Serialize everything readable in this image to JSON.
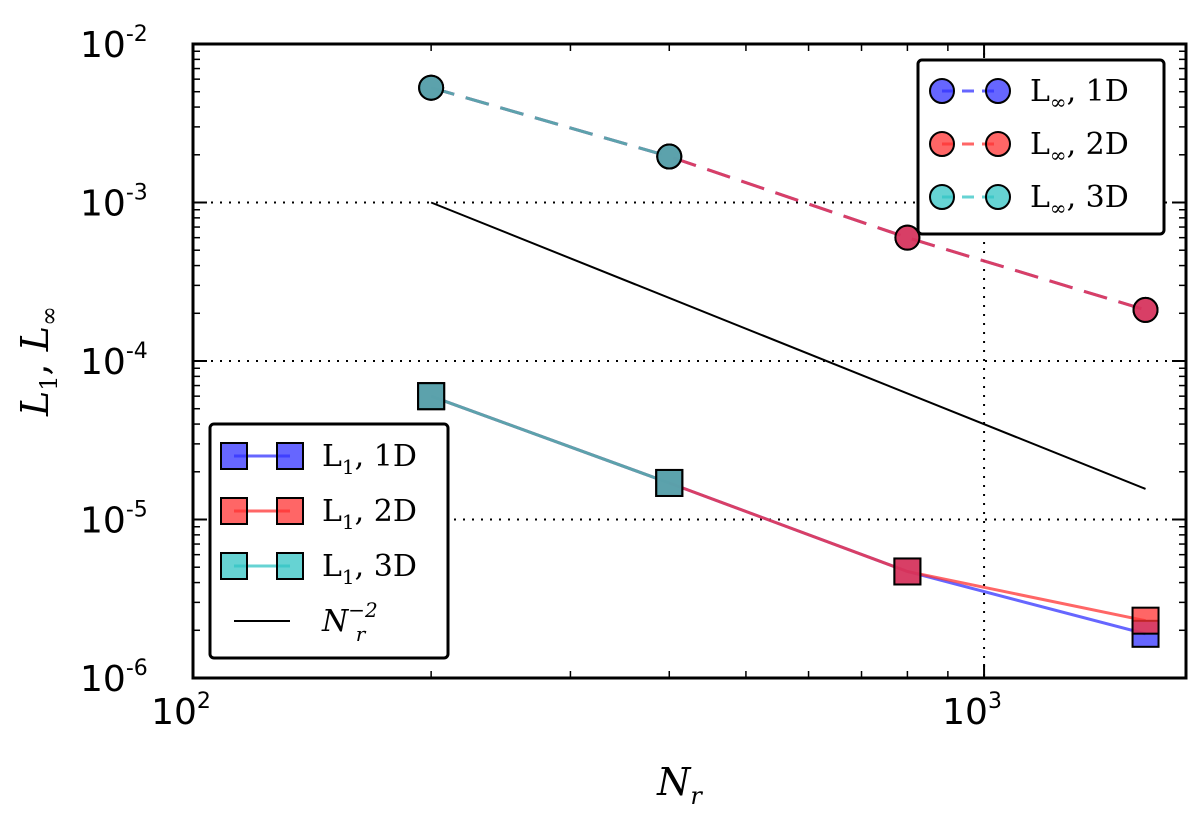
{
  "chart_data": {
    "type": "line",
    "xscale": "log",
    "yscale": "log",
    "xlim": [
      100,
      1800
    ],
    "ylim": [
      1e-06,
      0.01
    ],
    "grid": true,
    "xlabel": {
      "main": "N",
      "sub": "r"
    },
    "ylabel": {
      "a": "L",
      "a_sub": "1",
      "sep": ", ",
      "b": "L",
      "b_sub": "∞"
    },
    "x_ticks": [
      {
        "value": 100,
        "base": "10",
        "exp": "2"
      },
      {
        "value": 1000,
        "base": "10",
        "exp": "3"
      }
    ],
    "y_ticks": [
      {
        "value": 1e-06,
        "base": "10",
        "exp": "-6"
      },
      {
        "value": 1e-05,
        "base": "10",
        "exp": "-5"
      },
      {
        "value": 0.0001,
        "base": "10",
        "exp": "-4"
      },
      {
        "value": 0.001,
        "base": "10",
        "exp": "-3"
      },
      {
        "value": 0.01,
        "base": "10",
        "exp": "-2"
      }
    ],
    "x": [
      200,
      400,
      800,
      1600
    ],
    "series": [
      {
        "name": "L∞, 1D",
        "label_main": "L",
        "label_sub": "∞",
        "label_rest": ", 1D",
        "marker": "circle",
        "linestyle": "dashed",
        "color": "#3333ff",
        "values": [
          0.0053,
          0.00195,
          0.0006,
          0.00021
        ]
      },
      {
        "name": "L∞, 2D",
        "label_main": "L",
        "label_sub": "∞",
        "label_rest": ", 2D",
        "marker": "circle",
        "linestyle": "dashed",
        "color": "#ff3333",
        "values": [
          0.0053,
          0.00195,
          0.0006,
          0.00021
        ]
      },
      {
        "name": "L∞, 3D",
        "label_main": "L",
        "label_sub": "∞",
        "label_rest": ", 3D",
        "marker": "circle",
        "linestyle": "dashed",
        "color": "#33c4c4",
        "values": [
          0.0053,
          0.00195,
          null,
          null
        ]
      },
      {
        "name": "L1, 1D",
        "label_main": "L",
        "label_sub": "1",
        "label_rest": ", 1D",
        "marker": "square",
        "linestyle": "solid",
        "color": "#3333ff",
        "values": [
          6e-05,
          1.7e-05,
          4.7e-06,
          1.9e-06
        ]
      },
      {
        "name": "L1, 2D",
        "label_main": "L",
        "label_sub": "1",
        "label_rest": ", 2D",
        "marker": "square",
        "linestyle": "solid",
        "color": "#ff3333",
        "values": [
          6e-05,
          1.7e-05,
          4.7e-06,
          2.3e-06
        ]
      },
      {
        "name": "L1, 3D",
        "label_main": "L",
        "label_sub": "1",
        "label_rest": ", 3D",
        "marker": "square",
        "linestyle": "solid",
        "color": "#33c4c4",
        "values": [
          6e-05,
          1.7e-05,
          null,
          null
        ]
      }
    ],
    "reference_line": {
      "name": "N_r^-2",
      "label_main": "N",
      "label_sub": "r",
      "label_sup": "−2",
      "color": "#000000",
      "x": [
        200,
        1600
      ],
      "values": [
        0.001,
        1.56e-05
      ]
    },
    "legends": [
      {
        "placement": "top-right",
        "entries": [
          "L∞, 1D",
          "L∞, 2D",
          "L∞, 3D"
        ]
      },
      {
        "placement": "bottom-left",
        "entries": [
          "L1, 1D",
          "L1, 2D",
          "L1, 3D",
          "N_r^-2"
        ]
      }
    ]
  }
}
